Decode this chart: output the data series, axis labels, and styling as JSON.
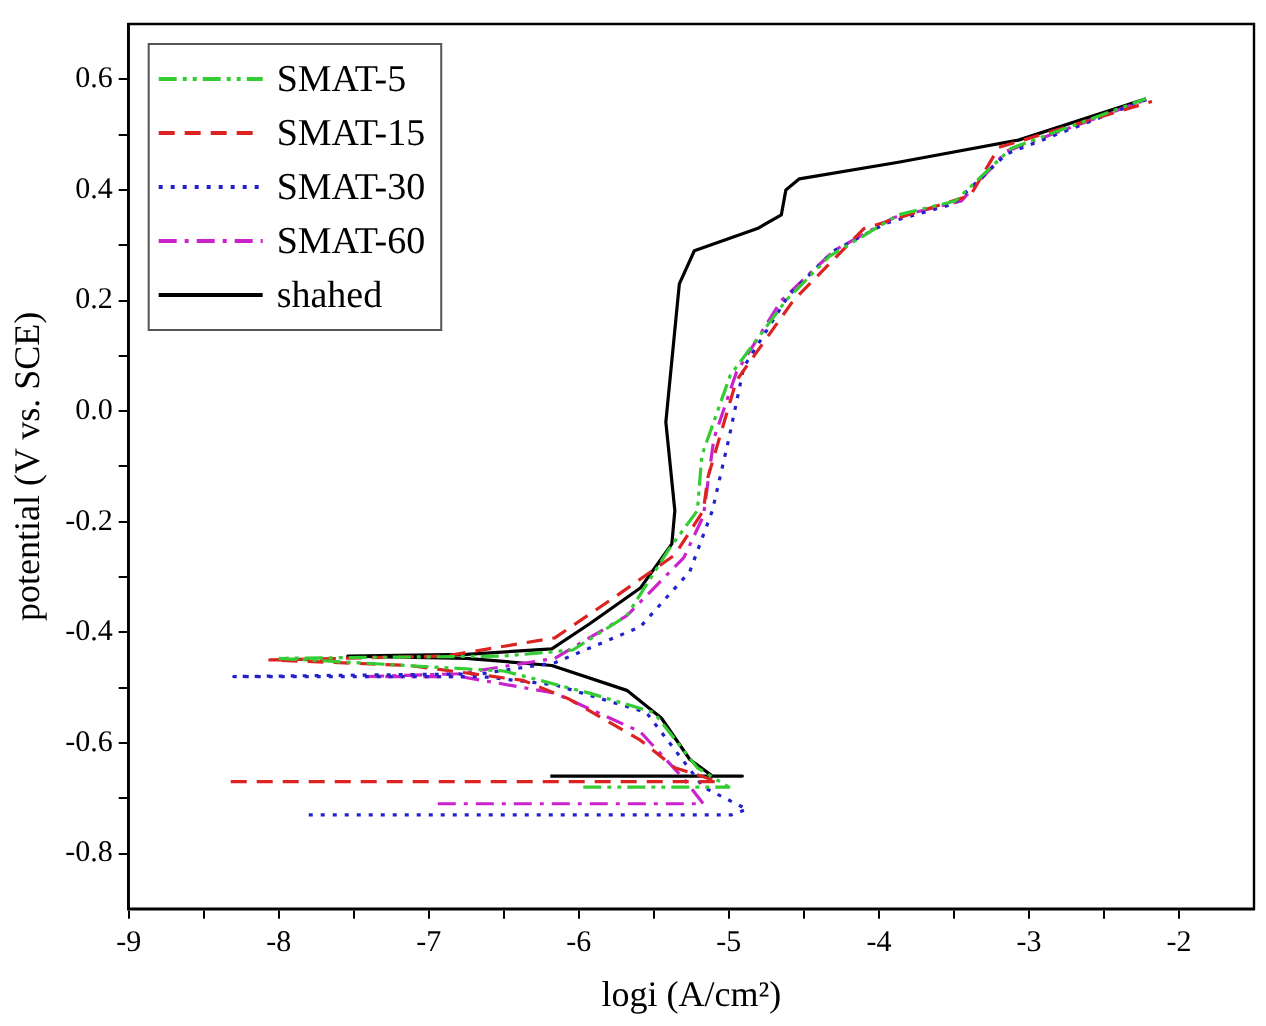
{
  "chart_data": {
    "type": "line",
    "xlabel": "logi (A/cm²)",
    "ylabel": "potential (V vs. SCE)",
    "xlim": [
      -9,
      -1.5
    ],
    "ylim": [
      -0.9,
      0.7
    ],
    "xticks": [
      -9,
      {
        "value": -8.5,
        "label": null
      },
      -8,
      {
        "value": -7.5,
        "label": null
      },
      -7,
      {
        "value": -6.5,
        "label": null
      },
      -6,
      {
        "value": -5.5,
        "label": null
      },
      -5,
      {
        "value": -4.5,
        "label": null
      },
      -4,
      {
        "value": -3.5,
        "label": null
      },
      -3,
      {
        "value": -2.5,
        "label": null
      },
      -2
    ],
    "yticks": [
      -0.8,
      {
        "value": -0.7,
        "label": null
      },
      -0.6,
      {
        "value": -0.5,
        "label": null
      },
      -0.4,
      {
        "value": -0.3,
        "label": null
      },
      -0.2,
      {
        "value": -0.1,
        "label": null
      },
      {
        "value": 0,
        "label": "0.0"
      },
      {
        "value": 0.1,
        "label": null
      },
      0.2,
      {
        "value": 0.3,
        "label": null
      },
      0.4,
      {
        "value": 0.5,
        "label": null
      },
      0.6
    ],
    "grid": false,
    "legend": "top left",
    "marker": "none",
    "series": [
      {
        "name": "SMAT-5",
        "color": "#33cc33",
        "line_style": "dashdotdot",
        "x": [
          -5.97,
          -5.0,
          -5.21,
          -5.5,
          -5.93,
          -6.5,
          -8.0,
          -6.5,
          -6.04,
          -5.68,
          -5.4,
          -5.21,
          -5.18,
          -4.99,
          -4.62,
          -4.33,
          -3.87,
          -3.49,
          -3.12,
          -2.22
        ],
        "values": [
          -0.68,
          -0.68,
          -0.645,
          -0.545,
          -0.51,
          -0.47,
          -0.447,
          -0.443,
          -0.432,
          -0.37,
          -0.25,
          -0.18,
          -0.08,
          0.065,
          0.2,
          0.28,
          0.355,
          0.38,
          0.475,
          0.565
        ]
      },
      {
        "name": "SMAT-15",
        "color": "#dd2222",
        "line_style": "dashed",
        "x": [
          -8.32,
          -5.07,
          -5.36,
          -5.59,
          -6.07,
          -6.37,
          -7.13,
          -8.06,
          -6.89,
          -6.16,
          -5.78,
          -5.36,
          -5.17,
          -5.14,
          -4.95,
          -4.57,
          -4.1,
          -3.39,
          -3.2,
          -2.18
        ],
        "values": [
          -0.67,
          -0.67,
          -0.645,
          -0.595,
          -0.52,
          -0.487,
          -0.46,
          -0.45,
          -0.443,
          -0.41,
          -0.34,
          -0.26,
          -0.18,
          -0.12,
          0.055,
          0.2,
          0.33,
          0.39,
          0.477,
          0.56
        ]
      },
      {
        "name": "SMAT-30",
        "color": "#2222cc",
        "line_style": "dotted",
        "x": [
          -7.8,
          -4.98,
          -4.88,
          -5.17,
          -5.55,
          -6.16,
          -6.65,
          -8.3,
          -6.65,
          -6.16,
          -5.59,
          -5.26,
          -5.11,
          -5.0,
          -4.9,
          -4.6,
          -4.3,
          -3.95,
          -3.5,
          -3.15,
          -2.2
        ],
        "values": [
          -0.73,
          -0.73,
          -0.72,
          -0.68,
          -0.545,
          -0.495,
          -0.48,
          -0.48,
          -0.475,
          -0.455,
          -0.39,
          -0.29,
          -0.18,
          -0.05,
          0.08,
          0.21,
          0.29,
          0.34,
          0.375,
          0.465,
          0.565
        ]
      },
      {
        "name": "SMAT-60",
        "color": "#cc22cc",
        "line_style": "dashdot",
        "x": [
          -6.94,
          -5.17,
          -5.3,
          -5.59,
          -6.16,
          -6.79,
          -7.42,
          -6.8,
          -6.16,
          -5.68,
          -5.3,
          -5.17,
          -5.1,
          -4.95,
          -4.65,
          -4.3,
          -3.9,
          -3.45,
          -3.15,
          -2.2
        ],
        "values": [
          -0.71,
          -0.71,
          -0.665,
          -0.58,
          -0.51,
          -0.48,
          -0.48,
          -0.475,
          -0.447,
          -0.37,
          -0.265,
          -0.19,
          -0.05,
          0.07,
          0.2,
          0.29,
          0.35,
          0.38,
          0.47,
          0.565
        ]
      },
      {
        "name": "shahed",
        "color": "#000000",
        "line_style": "solid",
        "x": [
          -6.19,
          -4.91,
          -5.11,
          -5.26,
          -5.45,
          -5.68,
          -6.18,
          -6.75,
          -7.54,
          -6.75,
          -6.18,
          -5.93,
          -5.59,
          -5.38,
          -5.36,
          -5.42,
          -5.33,
          -5.23,
          -4.81,
          -4.65,
          -4.62,
          -4.53,
          -3.87,
          -3.07,
          -2.22
        ],
        "values": [
          -0.66,
          -0.66,
          -0.66,
          -0.63,
          -0.555,
          -0.505,
          -0.46,
          -0.447,
          -0.443,
          -0.44,
          -0.43,
          -0.385,
          -0.32,
          -0.24,
          -0.18,
          -0.02,
          0.23,
          0.29,
          0.33,
          0.355,
          0.4,
          0.42,
          0.45,
          0.49,
          0.565
        ]
      }
    ]
  }
}
